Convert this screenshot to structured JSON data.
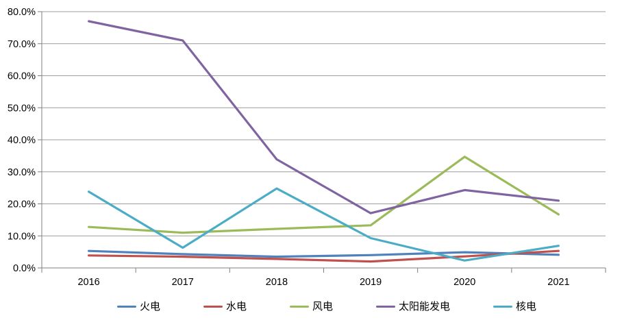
{
  "chart_data": {
    "type": "line",
    "x_categories": [
      "2016",
      "2017",
      "2018",
      "2019",
      "2020",
      "2021"
    ],
    "y_tick_labels": [
      "0.0%",
      "10.0%",
      "20.0%",
      "30.0%",
      "40.0%",
      "50.0%",
      "60.0%",
      "70.0%",
      "80.0%"
    ],
    "ylim": [
      0,
      80
    ],
    "y_unit": "percent",
    "grid": "horizontal",
    "legend_position": "bottom",
    "series": [
      {
        "name": "火电",
        "color": "#4F81BD",
        "values": [
          5.3,
          4.3,
          3.5,
          4.0,
          4.9,
          4.1
        ]
      },
      {
        "name": "水电",
        "color": "#C0504D",
        "values": [
          3.9,
          3.5,
          2.8,
          2.0,
          3.6,
          5.3
        ]
      },
      {
        "name": "风电",
        "color": "#9BBB59",
        "values": [
          12.8,
          11.0,
          12.2,
          13.3,
          34.7,
          16.7
        ]
      },
      {
        "name": "太阳能发电",
        "color": "#8064A2",
        "values": [
          77.0,
          71.0,
          33.9,
          17.1,
          24.3,
          21.0
        ]
      },
      {
        "name": "核电",
        "color": "#4BACC6",
        "values": [
          23.8,
          6.3,
          24.8,
          9.3,
          2.3,
          6.9
        ]
      }
    ],
    "axis_color": "#7F7F7F",
    "grid_color": "#9C9C9C",
    "text_color": "#000000",
    "background_color": "#FFFFFF"
  }
}
